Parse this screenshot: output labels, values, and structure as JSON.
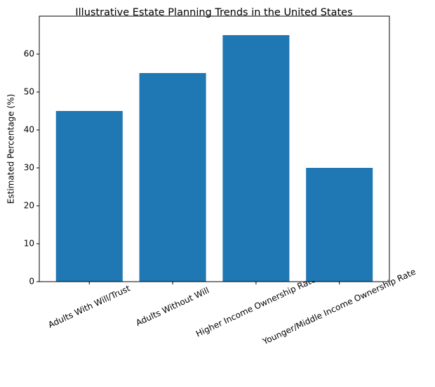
{
  "chart_data": {
    "type": "bar",
    "title": "Illustrative Estate Planning Trends in the United States",
    "y_label": "Estimated Percentage (%)",
    "categories": [
      "Adults With Will/Trust",
      "Adults Without Will",
      "Higher Income Ownership Rate",
      "Younger/Middle Income Ownership Rate"
    ],
    "values": [
      45,
      55,
      65,
      30
    ],
    "color": "#1f77b4",
    "ylim": [
      0,
      70
    ],
    "yticks": [
      0,
      10,
      20,
      30,
      40,
      50,
      60
    ]
  }
}
